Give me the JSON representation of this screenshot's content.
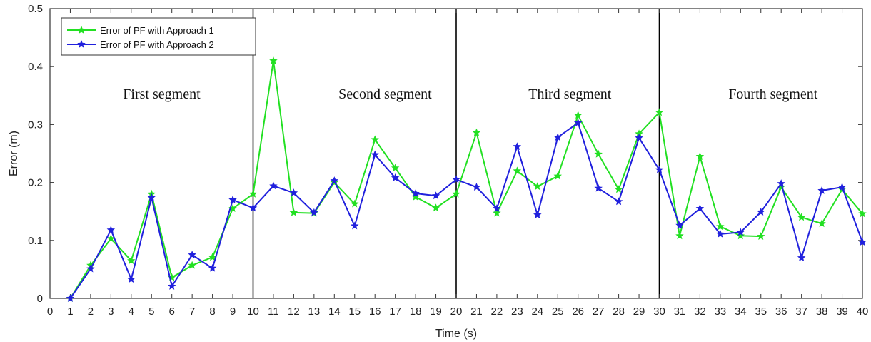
{
  "chart_data": {
    "type": "line",
    "title": "",
    "xlabel": "Time (s)",
    "ylabel": "Error (m)",
    "xlim": [
      0,
      40
    ],
    "ylim": [
      0,
      0.5
    ],
    "x_ticks": [
      0,
      1,
      2,
      3,
      4,
      5,
      6,
      7,
      8,
      9,
      10,
      11,
      12,
      13,
      14,
      15,
      16,
      17,
      18,
      19,
      20,
      21,
      22,
      23,
      24,
      25,
      26,
      27,
      28,
      29,
      30,
      31,
      32,
      33,
      34,
      35,
      36,
      37,
      38,
      39,
      40
    ],
    "y_ticks": [
      "0",
      "0.1",
      "0.2",
      "0.3",
      "0.4",
      "0.5"
    ],
    "grid": false,
    "legend_position": "top-left",
    "x": [
      1,
      2,
      3,
      4,
      5,
      6,
      7,
      8,
      9,
      10,
      11,
      12,
      13,
      14,
      15,
      16,
      17,
      18,
      19,
      20,
      21,
      22,
      23,
      24,
      25,
      26,
      27,
      28,
      29,
      30,
      31,
      32,
      33,
      34,
      35,
      36,
      37,
      38,
      39,
      40
    ],
    "series": [
      {
        "name": "Error of PF with Approach 1",
        "color": "#22e022",
        "marker": "star",
        "values": [
          0,
          0.057,
          0.103,
          0.065,
          0.18,
          0.036,
          0.057,
          0.071,
          0.155,
          0.18,
          0.41,
          0.148,
          0.147,
          0.2,
          0.163,
          0.274,
          0.225,
          0.175,
          0.156,
          0.18,
          0.286,
          0.147,
          0.22,
          0.193,
          0.211,
          0.316,
          0.249,
          0.188,
          0.284,
          0.321,
          0.108,
          0.245,
          0.124,
          0.108,
          0.107,
          0.192,
          0.14,
          0.129,
          0.188,
          0.146
        ]
      },
      {
        "name": "Error of PF with Approach 2",
        "color": "#2020dd",
        "marker": "star",
        "values": [
          0,
          0.051,
          0.118,
          0.033,
          0.174,
          0.021,
          0.075,
          0.052,
          0.17,
          0.156,
          0.194,
          0.182,
          0.148,
          0.203,
          0.125,
          0.248,
          0.208,
          0.181,
          0.177,
          0.205,
          0.192,
          0.155,
          0.262,
          0.144,
          0.278,
          0.303,
          0.19,
          0.167,
          0.277,
          0.222,
          0.126,
          0.155,
          0.111,
          0.114,
          0.149,
          0.198,
          0.07,
          0.186,
          0.192,
          0.097
        ]
      }
    ],
    "vertical_lines": [
      10,
      20,
      30
    ],
    "segments": [
      {
        "label": "First segment",
        "x_center": 5.5,
        "y": 0.345
      },
      {
        "label": "Second segment",
        "x_center": 16.5,
        "y": 0.345
      },
      {
        "label": "Third segment",
        "x_center": 25.6,
        "y": 0.345
      },
      {
        "label": "Fourth segment",
        "x_center": 35.6,
        "y": 0.345
      }
    ]
  }
}
